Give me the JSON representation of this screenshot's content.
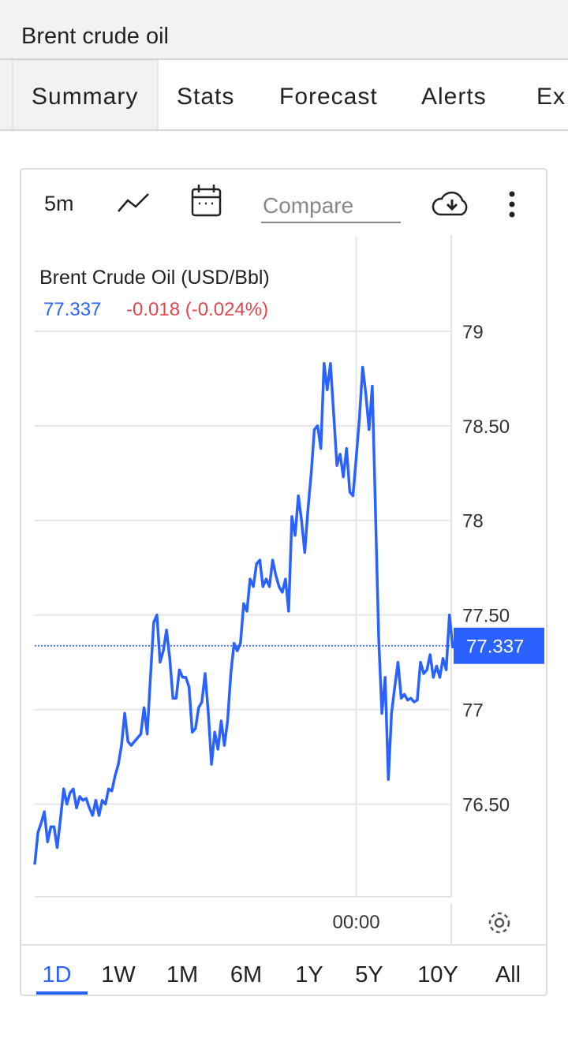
{
  "header": {
    "title": "Brent crude oil"
  },
  "tabs": [
    "Summary",
    "Stats",
    "Forecast",
    "Alerts",
    "Ex"
  ],
  "toolbar": {
    "interval": "5m",
    "compare_placeholder": "Compare"
  },
  "chart_data": {
    "type": "line",
    "title": "Brent Crude Oil (USD/Bbl)",
    "last_value": 77.337,
    "change": "-0.018 (-0.024%)",
    "color": "#2962ff",
    "values": [
      76.18,
      76.35,
      76.4,
      76.46,
      76.3,
      76.38,
      76.38,
      76.27,
      76.42,
      76.58,
      76.5,
      76.56,
      76.58,
      76.48,
      76.54,
      76.52,
      76.53,
      76.48,
      76.44,
      76.52,
      76.44,
      76.52,
      76.5,
      76.58,
      76.57,
      76.65,
      76.71,
      76.81,
      76.98,
      76.83,
      76.81,
      76.83,
      76.85,
      76.87,
      77.01,
      76.87,
      77.17,
      77.46,
      77.5,
      77.25,
      77.31,
      77.42,
      77.27,
      77.06,
      77.06,
      77.21,
      77.17,
      77.17,
      77.12,
      76.88,
      76.9,
      77.01,
      77.04,
      77.19,
      76.98,
      76.71,
      76.88,
      76.79,
      76.94,
      76.81,
      76.94,
      77.19,
      77.35,
      77.31,
      77.35,
      77.56,
      77.52,
      77.69,
      77.65,
      77.77,
      77.79,
      77.65,
      77.69,
      77.65,
      77.79,
      77.71,
      77.65,
      77.62,
      77.69,
      77.52,
      78.02,
      77.92,
      78.13,
      78.0,
      77.83,
      78.06,
      78.25,
      78.48,
      78.5,
      78.38,
      78.83,
      78.69,
      78.83,
      78.56,
      78.29,
      78.35,
      78.23,
      78.38,
      78.15,
      78.13,
      78.33,
      78.54,
      78.81,
      78.67,
      78.48,
      78.71,
      78.04,
      77.38,
      76.98,
      77.17,
      76.63,
      76.98,
      77.12,
      77.25,
      77.06,
      77.08,
      77.05,
      77.06,
      77.04,
      77.05,
      77.25,
      77.19,
      77.21,
      77.29,
      77.17,
      77.23,
      77.17,
      77.27,
      77.21,
      77.5,
      77.33,
      77.34,
      77.34,
      77.337
    ],
    "xlim": [
      0,
      133
    ],
    "xticks": [
      {
        "value": 100,
        "label": "00:00"
      }
    ],
    "ylim": [
      76.01,
      79.5
    ],
    "yticks": [
      {
        "value": 76.5,
        "label": "76.50"
      },
      77,
      {
        "value": 77.5,
        "label": "77.50"
      },
      78,
      {
        "value": 78.5,
        "label": "78.50"
      },
      79
    ],
    "grid": true
  },
  "periods": [
    "1D",
    "1W",
    "1M",
    "6M",
    "1Y",
    "5Y",
    "10Y",
    "All"
  ]
}
